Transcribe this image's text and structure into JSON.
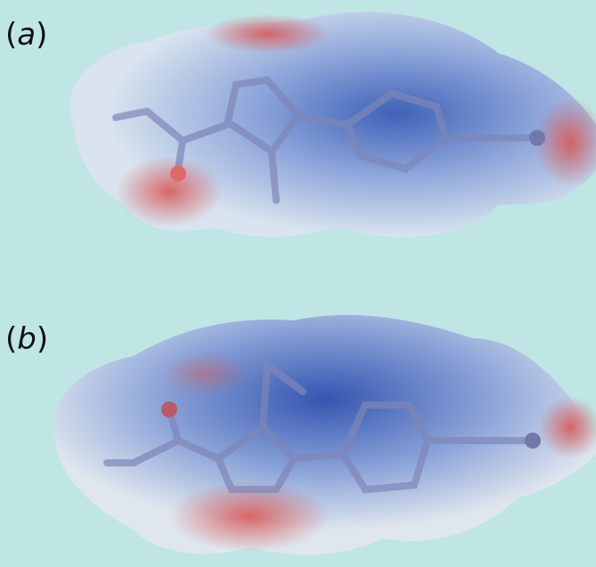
{
  "panels": [
    {
      "label_parts": [
        "(",
        "a",
        ")"
      ]
    },
    {
      "label_parts": [
        "(",
        "b",
        ")"
      ]
    }
  ]
}
